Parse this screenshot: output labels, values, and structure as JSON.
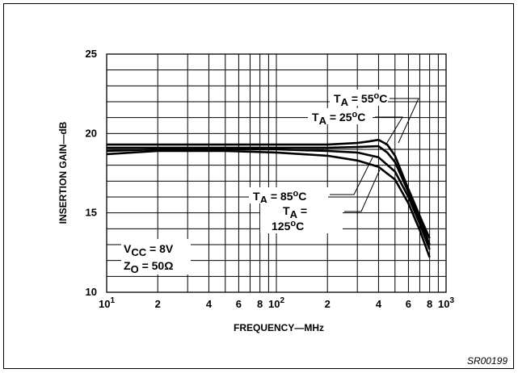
{
  "figure_code": "SR00199",
  "chart_data": {
    "type": "line",
    "xscale": "log",
    "xlim": [
      10,
      1000
    ],
    "ylim": [
      10,
      25
    ],
    "xlabel": "FREQUENCY—MHz",
    "ylabel": "INSERTION GAIN—dB",
    "x_ticks": [
      {
        "value": 10,
        "base": "10",
        "exp": "1"
      },
      {
        "value": 20,
        "label": "2"
      },
      {
        "value": 40,
        "label": "4"
      },
      {
        "value": 60,
        "label": "6"
      },
      {
        "value": 80,
        "label": "8"
      },
      {
        "value": 100,
        "base": "10",
        "exp": "2"
      },
      {
        "value": 200,
        "label": "2"
      },
      {
        "value": 400,
        "label": "4"
      },
      {
        "value": 600,
        "label": "6"
      },
      {
        "value": 800,
        "label": "8"
      },
      {
        "value": 1000,
        "base": "10",
        "exp": "3"
      }
    ],
    "y_ticks": [
      10,
      15,
      20,
      25
    ],
    "series": [
      {
        "name": "TA = 55°C",
        "x": [
          10,
          20,
          50,
          100,
          200,
          300,
          350,
          400,
          450,
          500,
          600,
          700,
          800
        ],
        "y": [
          19.3,
          19.3,
          19.3,
          19.3,
          19.3,
          19.4,
          19.5,
          19.6,
          19.3,
          18.6,
          16.5,
          14.8,
          13.4
        ]
      },
      {
        "name": "TA = 25°C",
        "x": [
          10,
          20,
          50,
          100,
          200,
          300,
          400,
          450,
          500,
          600,
          700,
          800
        ],
        "y": [
          19.1,
          19.1,
          19.1,
          19.1,
          19.1,
          19.15,
          19.2,
          18.8,
          18.2,
          16.3,
          14.6,
          13.0
        ]
      },
      {
        "name": "TA = 85°C",
        "x": [
          10,
          20,
          50,
          100,
          200,
          300,
          400,
          500,
          600,
          700,
          800
        ],
        "y": [
          18.9,
          19.0,
          19.0,
          19.0,
          18.9,
          18.8,
          18.5,
          17.6,
          16.0,
          14.3,
          12.7
        ]
      },
      {
        "name": "TA = 125°C",
        "x": [
          10,
          20,
          50,
          100,
          200,
          300,
          400,
          500,
          600,
          700,
          800
        ],
        "y": [
          18.7,
          18.9,
          18.9,
          18.8,
          18.6,
          18.3,
          17.9,
          17.1,
          15.6,
          13.9,
          12.2
        ]
      }
    ],
    "annotations": {
      "ta55": {
        "main": "T",
        "sub": "A",
        "rest": " = 55",
        "sup": "o",
        "end": "C"
      },
      "ta25": {
        "main": "T",
        "sub": "A",
        "rest": " = 25",
        "sup": "o",
        "end": "C"
      },
      "ta85": {
        "main": "T",
        "sub": "A",
        "rest": " = 85",
        "sup": "o",
        "end": "C"
      },
      "ta125_line1": {
        "main": "T",
        "sub": "A",
        "rest": " ="
      },
      "ta125_line2": {
        "rest": "125",
        "sup": "o",
        "end": "C"
      },
      "vcc": {
        "main": "V",
        "sub": "CC",
        "rest": " = 8V"
      },
      "zo": {
        "main": "Z",
        "sub": "O",
        "rest": " = 50Ω"
      }
    }
  }
}
